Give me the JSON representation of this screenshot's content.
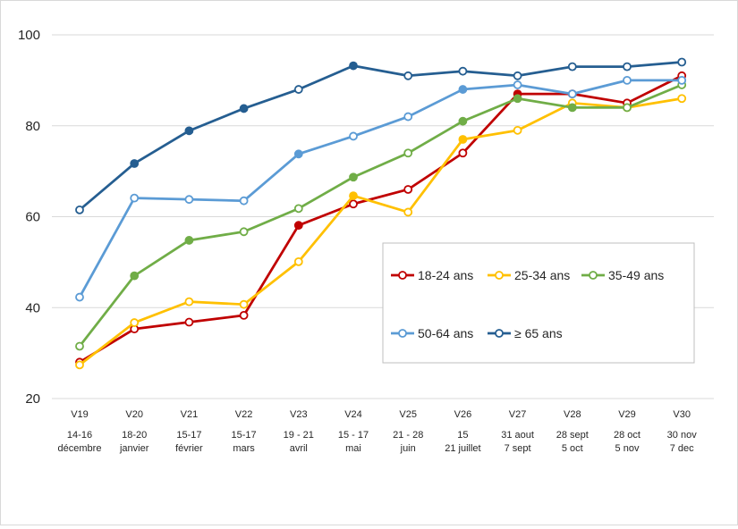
{
  "chart_data": {
    "type": "line",
    "title": "",
    "xlabel": "",
    "ylabel": "",
    "ylim": [
      20,
      100
    ],
    "yticks": [
      20,
      40,
      60,
      80,
      100
    ],
    "grid": true,
    "legend_position": "center-right",
    "categories": [
      {
        "wave": "V19",
        "l1": "14-16",
        "l2": "décembre"
      },
      {
        "wave": "V20",
        "l1": "18-20",
        "l2": "janvier"
      },
      {
        "wave": "V21",
        "l1": "15-17",
        "l2": "février"
      },
      {
        "wave": "V22",
        "l1": "15-17",
        "l2": "mars"
      },
      {
        "wave": "V23",
        "l1": "19 - 21",
        "l2": "avril"
      },
      {
        "wave": "V24",
        "l1": "15 - 17",
        "l2": "mai"
      },
      {
        "wave": "V25",
        "l1": "21 - 28",
        "l2": "juin"
      },
      {
        "wave": "V26",
        "l1": "15",
        "l2": "21 juillet"
      },
      {
        "wave": "V27",
        "l1": "31 aout",
        "l2": "7 sept"
      },
      {
        "wave": "V28",
        "l1": "28 sept",
        "l2": "5 oct"
      },
      {
        "wave": "V29",
        "l1": "28 oct",
        "l2": "5 nov"
      },
      {
        "wave": "V30",
        "l1": "30 nov",
        "l2": "7 dec"
      }
    ],
    "series": [
      {
        "name": "18-24 ans",
        "color": "#c00000",
        "values": [
          28,
          35.3,
          36.8,
          38.3,
          58.1,
          62.8,
          66,
          74,
          87,
          87,
          85,
          91
        ],
        "filled": [
          false,
          false,
          false,
          false,
          true,
          false,
          false,
          false,
          true,
          false,
          false,
          false
        ]
      },
      {
        "name": "25-34 ans",
        "color": "#ffc000",
        "values": [
          27.4,
          36.7,
          41.3,
          40.7,
          50.1,
          64.6,
          61,
          77,
          79,
          85,
          84,
          86
        ],
        "filled": [
          false,
          false,
          false,
          false,
          false,
          true,
          false,
          true,
          false,
          false,
          false,
          false
        ]
      },
      {
        "name": "35-49 ans",
        "color": "#70ad47",
        "values": [
          31.5,
          47,
          54.8,
          56.7,
          61.8,
          68.7,
          74,
          81,
          86,
          84,
          84,
          89
        ],
        "filled": [
          false,
          true,
          true,
          false,
          false,
          true,
          false,
          true,
          true,
          true,
          false,
          false
        ]
      },
      {
        "name": "50-64 ans",
        "color": "#5b9bd5",
        "values": [
          42.3,
          64.1,
          63.8,
          63.5,
          73.8,
          77.7,
          82,
          88,
          89,
          87,
          90,
          90
        ],
        "filled": [
          false,
          false,
          false,
          false,
          true,
          false,
          false,
          true,
          false,
          false,
          false,
          false
        ]
      },
      {
        "name": "≥ 65 ans",
        "color": "#255e91",
        "values": [
          61.5,
          71.7,
          78.9,
          83.8,
          88,
          93.2,
          91,
          92,
          91,
          93,
          93,
          94
        ],
        "filled": [
          false,
          true,
          true,
          true,
          false,
          true,
          false,
          false,
          false,
          false,
          false,
          false
        ]
      }
    ]
  }
}
